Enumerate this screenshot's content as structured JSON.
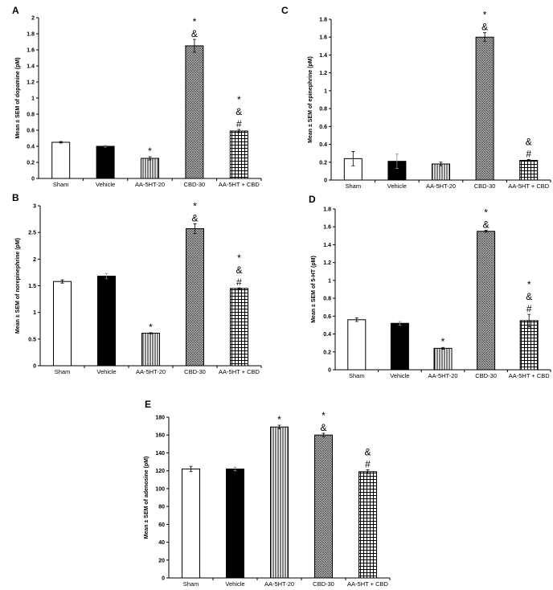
{
  "chart_data": [
    {
      "type": "bar",
      "panel": "A",
      "categories": [
        "Sham",
        "Vehicle",
        "AA-5HT-20",
        "CBD-30",
        "AA-5HT + CBD"
      ],
      "values": [
        0.45,
        0.4,
        0.25,
        1.65,
        0.59
      ],
      "errors": [
        0.01,
        0.01,
        0.02,
        0.08,
        0.02
      ],
      "annotations": [
        "",
        "",
        "*",
        "*&",
        "*&#"
      ],
      "ylabel": "Mean ± SEM of dopamine (pM)",
      "ylim": [
        0,
        2
      ],
      "yticks": [
        "0",
        "0.2",
        "0.4",
        "0.6",
        "0.8",
        "1",
        "1.2",
        "1.4",
        "1.6",
        "1.8",
        "2"
      ]
    },
    {
      "type": "bar",
      "panel": "B",
      "categories": [
        "Sham",
        "Vehicle",
        "AA-5HT-20",
        "CBD-30",
        "AA-5HT + CBD"
      ],
      "values": [
        1.58,
        1.68,
        0.61,
        2.57,
        1.45
      ],
      "errors": [
        0.03,
        0.05,
        0.01,
        0.09,
        0.01
      ],
      "annotations": [
        "",
        "",
        "*",
        "*&",
        "*&#"
      ],
      "ylabel": "Mean ± SEM of norepinephrine (pM)",
      "ylim": [
        0,
        3
      ],
      "yticks": [
        "0",
        "0.5",
        "1",
        "1.5",
        "2",
        "2.5",
        "3"
      ]
    },
    {
      "type": "bar",
      "panel": "C",
      "categories": [
        "Sham",
        "Vehicle",
        "AA-5HT-20",
        "CBD-30",
        "AA-5HT + CBD"
      ],
      "values": [
        0.24,
        0.21,
        0.18,
        1.6,
        0.22
      ],
      "errors": [
        0.08,
        0.08,
        0.02,
        0.05,
        0.01
      ],
      "annotations": [
        "",
        "",
        "",
        "*&",
        "&#"
      ],
      "ylabel": "Mean ± SEM of epinephrine (pM)",
      "ylim": [
        0,
        1.8
      ],
      "yticks": [
        "0",
        "0.2",
        "0.4",
        "0.6",
        "0.8",
        "1",
        "1.2",
        "1.4",
        "1.6",
        "1.8"
      ]
    },
    {
      "type": "bar",
      "panel": "D",
      "categories": [
        "Sham",
        "Vehicle",
        "AA-5HT-20",
        "CBD-30",
        "AA-5HT + CBD"
      ],
      "values": [
        0.56,
        0.52,
        0.24,
        1.55,
        0.55
      ],
      "errors": [
        0.02,
        0.02,
        0.01,
        0.01,
        0.07
      ],
      "annotations": [
        "",
        "",
        "*",
        "*&",
        "*&#"
      ],
      "ylabel": "Mean ± SEM of 5-HT (pM)",
      "ylim": [
        0,
        1.8
      ],
      "yticks": [
        "0",
        "0.2",
        "0.4",
        "0.6",
        "0.8",
        "1",
        "1.2",
        "1.4",
        "1.6",
        "1.8"
      ]
    },
    {
      "type": "bar",
      "panel": "E",
      "categories": [
        "Sham",
        "Vehicle",
        "AA-5HT-20",
        "CBD-30",
        "AA-5HT + CBD"
      ],
      "values": [
        122,
        122,
        169,
        160,
        119
      ],
      "errors": [
        3,
        2,
        2,
        2,
        2
      ],
      "annotations": [
        "",
        "",
        "*",
        "*&",
        "&#"
      ],
      "ylabel": "Mean ± SEM of adenosine (pM)",
      "ylim": [
        0,
        180
      ],
      "yticks": [
        "0",
        "20",
        "40",
        "60",
        "80",
        "100",
        "120",
        "140",
        "160",
        "180"
      ]
    }
  ],
  "bar_fills": [
    "white",
    "black",
    "vertical-stripes",
    "zigzag",
    "grid"
  ]
}
